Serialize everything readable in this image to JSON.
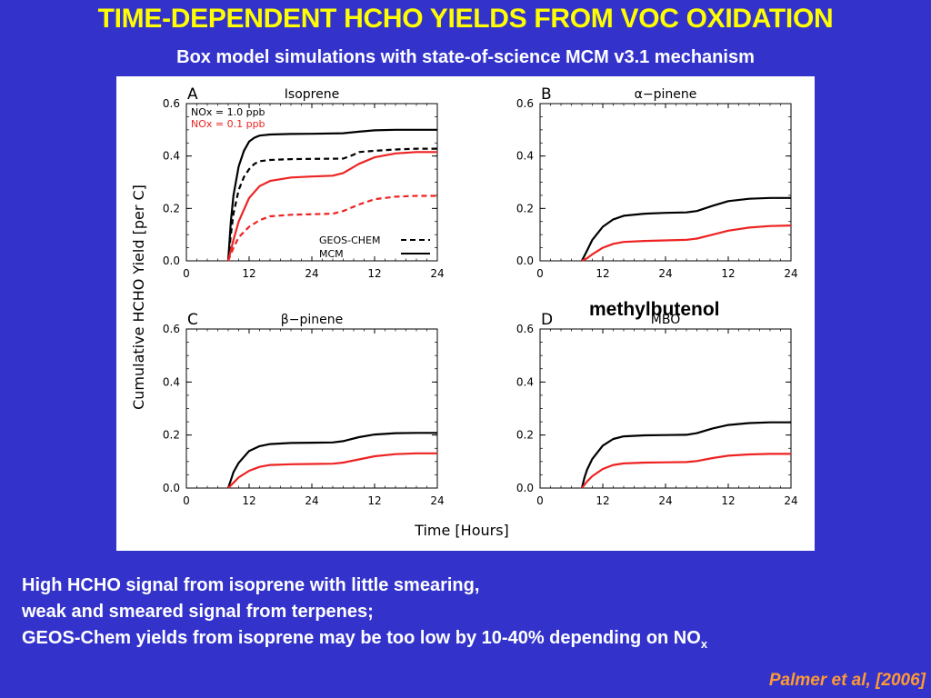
{
  "slide": {
    "title": "TIME-DEPENDENT HCHO YIELDS FROM VOC OXIDATION",
    "subtitle": "Box model simulations with state-of-science MCM v3.1 mechanism",
    "overlay_label": "methylbutenol",
    "bullets": [
      "High HCHO signal from isoprene with little smearing,",
      "weak and smeared signal from terpenes;",
      "GEOS-Chem yields from isoprene may be too low by 10-40% depending on NO",
      "x"
    ],
    "citation": "Palmer et al, [2006]"
  },
  "figure": {
    "ylabel": "Cumulative HCHO Yield [per C]",
    "xlabel": "Time [Hours]"
  },
  "colors": {
    "background": "#3333cc",
    "title": "#ffff00",
    "citation": "#ff9933",
    "nox_high": "#000000",
    "nox_low": "#ee2222"
  },
  "chart_data": [
    {
      "type": "line",
      "panel_letter": "A",
      "title": "Isoprene",
      "x_tick_labels": [
        "0",
        "12",
        "24",
        "12",
        "24"
      ],
      "y_tick_labels": [
        "0.0",
        "0.2",
        "0.4",
        "0.6"
      ],
      "xlim": [
        0,
        48
      ],
      "ylim": [
        0,
        0.6
      ],
      "legend_nox": [
        "NOx = 1.0 ppb",
        "NOx = 0.1 ppb"
      ],
      "legend_model": [
        "GEOS-CHEM",
        "MCM"
      ],
      "series": [
        {
          "name": "NOx = 1.0 ppb",
          "model": "MCM",
          "dashed": false,
          "color": "#000000",
          "x": [
            8,
            8.5,
            9,
            10,
            11,
            12,
            13,
            14,
            16,
            20,
            24,
            30,
            33,
            36,
            40,
            44,
            48
          ],
          "y": [
            0,
            0.15,
            0.25,
            0.36,
            0.42,
            0.455,
            0.47,
            0.478,
            0.482,
            0.484,
            0.485,
            0.487,
            0.493,
            0.498,
            0.5,
            0.5,
            0.5
          ]
        },
        {
          "name": "NOx = 1.0 ppb",
          "model": "GEOS-CHEM",
          "dashed": true,
          "color": "#000000",
          "x": [
            8,
            8.5,
            9,
            10,
            11,
            12,
            13,
            14,
            16,
            20,
            24,
            30,
            32,
            33,
            36,
            40,
            44,
            48
          ],
          "y": [
            0,
            0.1,
            0.18,
            0.27,
            0.32,
            0.35,
            0.37,
            0.38,
            0.385,
            0.388,
            0.389,
            0.39,
            0.405,
            0.415,
            0.42,
            0.425,
            0.428,
            0.428
          ]
        },
        {
          "name": "NOx = 0.1 ppb",
          "model": "MCM",
          "dashed": false,
          "color": "#ee2222",
          "x": [
            8,
            9,
            10,
            12,
            14,
            16,
            20,
            24,
            28,
            30,
            33,
            36,
            40,
            44,
            48
          ],
          "y": [
            0,
            0.08,
            0.15,
            0.24,
            0.285,
            0.305,
            0.318,
            0.322,
            0.325,
            0.335,
            0.37,
            0.395,
            0.41,
            0.415,
            0.415
          ]
        },
        {
          "name": "NOx = 0.1 ppb",
          "model": "GEOS-CHEM",
          "dashed": true,
          "color": "#ee2222",
          "x": [
            8,
            9,
            10,
            12,
            14,
            16,
            20,
            24,
            28,
            30,
            33,
            36,
            40,
            44,
            48
          ],
          "y": [
            0,
            0.05,
            0.09,
            0.13,
            0.155,
            0.17,
            0.176,
            0.178,
            0.18,
            0.19,
            0.215,
            0.235,
            0.245,
            0.248,
            0.248
          ]
        }
      ]
    },
    {
      "type": "line",
      "panel_letter": "B",
      "title": "α−pinene",
      "x_tick_labels": [
        "0",
        "12",
        "24",
        "12",
        "24"
      ],
      "y_tick_labels": [
        "0.0",
        "0.2",
        "0.4",
        "0.6"
      ],
      "xlim": [
        0,
        48
      ],
      "ylim": [
        0,
        0.6
      ],
      "series": [
        {
          "name": "NOx = 1.0 ppb",
          "model": "MCM",
          "dashed": false,
          "color": "#000000",
          "x": [
            8,
            9,
            10,
            12,
            14,
            16,
            20,
            24,
            28,
            30,
            33,
            36,
            40,
            44,
            48
          ],
          "y": [
            0,
            0.04,
            0.08,
            0.13,
            0.158,
            0.172,
            0.18,
            0.183,
            0.185,
            0.19,
            0.21,
            0.228,
            0.237,
            0.24,
            0.24
          ]
        },
        {
          "name": "NOx = 0.1 ppb",
          "model": "MCM",
          "dashed": false,
          "color": "#ee2222",
          "x": [
            8,
            9,
            10,
            12,
            14,
            16,
            20,
            24,
            28,
            30,
            33,
            36,
            40,
            44,
            48
          ],
          "y": [
            0,
            0.01,
            0.025,
            0.05,
            0.065,
            0.072,
            0.076,
            0.078,
            0.08,
            0.085,
            0.1,
            0.115,
            0.127,
            0.133,
            0.135
          ]
        }
      ]
    },
    {
      "type": "line",
      "panel_letter": "C",
      "title": "β−pinene",
      "x_tick_labels": [
        "0",
        "12",
        "24",
        "12",
        "24"
      ],
      "y_tick_labels": [
        "0.0",
        "0.2",
        "0.4",
        "0.6"
      ],
      "xlim": [
        0,
        48
      ],
      "ylim": [
        0,
        0.6
      ],
      "series": [
        {
          "name": "NOx = 1.0 ppb",
          "model": "MCM",
          "dashed": false,
          "color": "#000000",
          "x": [
            8,
            8.5,
            9,
            10,
            12,
            14,
            16,
            20,
            24,
            28,
            30,
            33,
            36,
            40,
            44,
            48
          ],
          "y": [
            0,
            0.03,
            0.06,
            0.095,
            0.14,
            0.158,
            0.166,
            0.17,
            0.171,
            0.172,
            0.177,
            0.192,
            0.202,
            0.207,
            0.208,
            0.208
          ]
        },
        {
          "name": "NOx = 0.1 ppb",
          "model": "MCM",
          "dashed": false,
          "color": "#ee2222",
          "x": [
            8,
            9,
            10,
            12,
            14,
            16,
            20,
            24,
            28,
            30,
            33,
            36,
            40,
            44,
            48
          ],
          "y": [
            0,
            0.02,
            0.04,
            0.065,
            0.08,
            0.087,
            0.09,
            0.091,
            0.092,
            0.096,
            0.108,
            0.12,
            0.128,
            0.131,
            0.131
          ]
        }
      ]
    },
    {
      "type": "line",
      "panel_letter": "D",
      "title": "MBO",
      "x_tick_labels": [
        "0",
        "12",
        "24",
        "12",
        "24"
      ],
      "y_tick_labels": [
        "0.0",
        "0.2",
        "0.4",
        "0.6"
      ],
      "xlim": [
        0,
        48
      ],
      "ylim": [
        0,
        0.6
      ],
      "series": [
        {
          "name": "NOx = 1.0 ppb",
          "model": "MCM",
          "dashed": false,
          "color": "#000000",
          "x": [
            8,
            8.5,
            9,
            10,
            12,
            14,
            16,
            20,
            24,
            28,
            30,
            33,
            36,
            40,
            44,
            48
          ],
          "y": [
            0,
            0.04,
            0.07,
            0.11,
            0.16,
            0.185,
            0.195,
            0.199,
            0.2,
            0.201,
            0.207,
            0.225,
            0.238,
            0.245,
            0.248,
            0.248
          ]
        },
        {
          "name": "NOx = 0.1 ppb",
          "model": "MCM",
          "dashed": false,
          "color": "#ee2222",
          "x": [
            8,
            9,
            10,
            12,
            14,
            16,
            20,
            24,
            28,
            30,
            33,
            36,
            40,
            44,
            48
          ],
          "y": [
            0,
            0.025,
            0.045,
            0.072,
            0.087,
            0.093,
            0.096,
            0.097,
            0.098,
            0.102,
            0.113,
            0.122,
            0.127,
            0.129,
            0.129
          ]
        }
      ]
    }
  ]
}
